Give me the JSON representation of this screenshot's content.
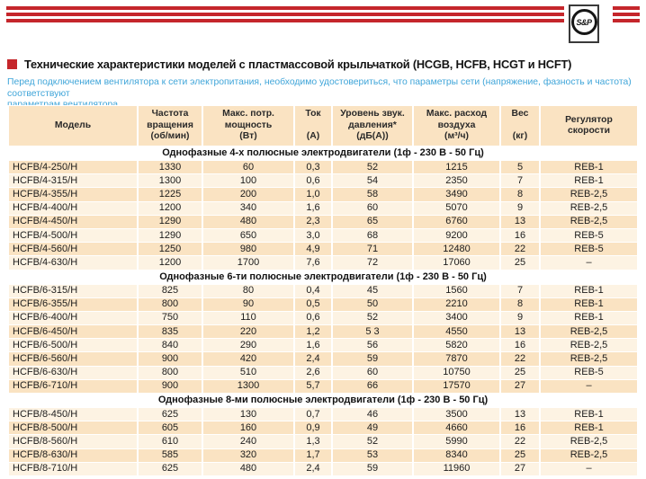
{
  "brand": {
    "logo_text": "S&P",
    "stripe_color": "#c5262b"
  },
  "title": {
    "text": "Технические характеристики моделей с пластмассовой крыльчаткой (HCGB, HCFB, HCGT и HCFT)"
  },
  "note_lines": [
    "Перед подключением вентилятора к сети электропитания, необходимо удостовериться, что параметры сети (напряжение, фазность и частота) соответствуют",
    "параметрам вентилятора."
  ],
  "colors": {
    "accent_red": "#c5262b",
    "note_blue": "#3fa5d9",
    "row_dark": "#fae3c2",
    "row_light": "#fdf3e3"
  },
  "table": {
    "columns": [
      {
        "id": "model",
        "lines": [
          "Модель"
        ]
      },
      {
        "id": "speed",
        "lines": [
          "Частота",
          "вращения",
          "(об/мин)"
        ]
      },
      {
        "id": "power",
        "lines": [
          "Макс. потр.",
          "мощность",
          "(Вт)"
        ]
      },
      {
        "id": "current",
        "lines": [
          "Ток",
          "",
          "(А)"
        ]
      },
      {
        "id": "noise",
        "lines": [
          "Уровень звук.",
          "давления*",
          "(дБ(А))"
        ]
      },
      {
        "id": "airflow",
        "lines": [
          "Макс. расход",
          "воздуха",
          "(м³/ч)"
        ]
      },
      {
        "id": "weight",
        "lines": [
          "Вес",
          "",
          "(кг)"
        ]
      },
      {
        "id": "controller",
        "lines": [
          "Регулятор",
          "скорости"
        ]
      }
    ],
    "sections": [
      {
        "title": "Однофазные 4-х полюсные электродвигатели (1ф - 230 В - 50 Гц)",
        "rows": [
          [
            "HCFB/4-250/H",
            "1330",
            "60",
            "0,3",
            "52",
            "1215",
            "5",
            "REB-1"
          ],
          [
            "HCFB/4-315/H",
            "1300",
            "100",
            "0,6",
            "54",
            "2350",
            "7",
            "REB-1"
          ],
          [
            "HCFB/4-355/H",
            "1225",
            "200",
            "1,0",
            "58",
            "3490",
            "8",
            "REB-2,5"
          ],
          [
            "HCFB/4-400/H",
            "1200",
            "340",
            "1,6",
            "60",
            "5070",
            "9",
            "REB-2,5"
          ],
          [
            "HCFB/4-450/H",
            "1290",
            "480",
            "2,3",
            "65",
            "6760",
            "13",
            "REB-2,5"
          ],
          [
            "HCFB/4-500/H",
            "1290",
            "650",
            "3,0",
            "68",
            "9200",
            "16",
            "REB-5"
          ],
          [
            "HCFB/4-560/H",
            "1250",
            "980",
            "4,9",
            "71",
            "12480",
            "22",
            "REB-5"
          ],
          [
            "HCFB/4-630/H",
            "1200",
            "1700",
            "7,6",
            "72",
            "17060",
            "25",
            "–"
          ]
        ]
      },
      {
        "title": "Однофазные 6-ти полюсные электродвигатели (1ф - 230 В - 50 Гц)",
        "rows": [
          [
            "HCFB/6-315/H",
            "825",
            "80",
            "0,4",
            "45",
            "1560",
            "7",
            "REB-1"
          ],
          [
            "HCFB/6-355/H",
            "800",
            "90",
            "0,5",
            "50",
            "2210",
            "8",
            "REB-1"
          ],
          [
            "HCFB/6-400/H",
            "750",
            "110",
            "0,6",
            "52",
            "3400",
            "9",
            "REB-1"
          ],
          [
            "HCFB/6-450/H",
            "835",
            "220",
            "1,2",
            "5 3",
            "4550",
            "13",
            "REB-2,5"
          ],
          [
            "HCFB/6-500/H",
            "840",
            "290",
            "1,6",
            "56",
            "5820",
            "16",
            "REB-2,5"
          ],
          [
            "HCFB/6-560/H",
            "900",
            "420",
            "2,4",
            "59",
            "7870",
            "22",
            "REB-2,5"
          ],
          [
            "HCFB/6-630/H",
            "800",
            "510",
            "2,6",
            "60",
            "10750",
            "25",
            "REB-5"
          ],
          [
            "HCFB/6-710/H",
            "900",
            "1300",
            "5,7",
            "66",
            "17570",
            "27",
            "–"
          ]
        ]
      },
      {
        "title": "Однофазные 8-ми полюсные электродвигатели (1ф - 230 В - 50 Гц)",
        "rows": [
          [
            "HCFB/8-450/H",
            "625",
            "130",
            "0,7",
            "46",
            "3500",
            "13",
            "REB-1"
          ],
          [
            "HCFB/8-500/H",
            "605",
            "160",
            "0,9",
            "49",
            "4660",
            "16",
            "REB-1"
          ],
          [
            "HCFB/8-560/H",
            "610",
            "240",
            "1,3",
            "52",
            "5990",
            "22",
            "REB-2,5"
          ],
          [
            "HCFB/8-630/H",
            "585",
            "320",
            "1,7",
            "53",
            "8340",
            "25",
            "REB-2,5"
          ],
          [
            "HCFB/8-710/H",
            "625",
            "480",
            "2,4",
            "59",
            "11960",
            "27",
            "–"
          ]
        ]
      }
    ]
  }
}
